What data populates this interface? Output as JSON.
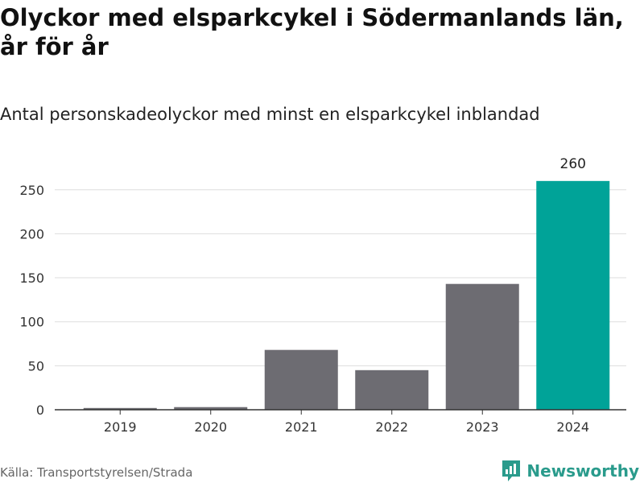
{
  "chart_data": {
    "type": "bar",
    "title": "Olyckor med elsparkcykel i Södermanlands län, år för år",
    "subtitle": "Antal personskadeolyckor med minst en elsparkcykel inblandad",
    "categories": [
      "2019",
      "2020",
      "2021",
      "2022",
      "2023",
      "2024"
    ],
    "values": [
      2,
      3,
      68,
      45,
      143,
      260
    ],
    "data_labels": [
      "",
      "",
      "",
      "",
      "",
      "260"
    ],
    "ylim": [
      0,
      275
    ],
    "yticks": [
      0,
      50,
      100,
      150,
      200,
      250
    ],
    "grid": true,
    "colors": {
      "default_bar": "#6d6c72",
      "highlight_bar": "#00a398",
      "gridline": "#dddddd",
      "axis": "#333333"
    },
    "highlight_category": "2024"
  },
  "footer": {
    "source": "Källa: Transportstyrelsen/Strada",
    "brand": "Newsworthy",
    "brand_icon": "bar-chart-logo-icon"
  }
}
